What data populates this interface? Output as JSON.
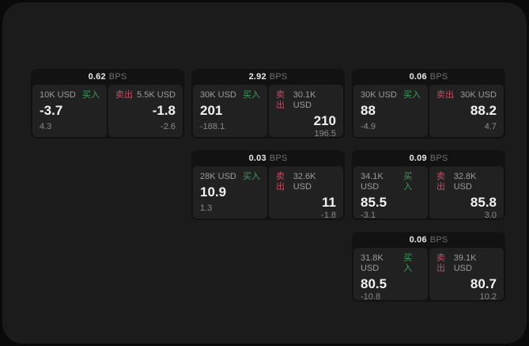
{
  "page": {
    "bg_outer": "#0a0a0a",
    "bg_inner": "#1b1b1b"
  },
  "labels": {
    "buy": "买入",
    "sell": "卖出",
    "bps": "BPS"
  },
  "colors": {
    "buy_green": "#3da05c",
    "sell_red": "#c24d63",
    "card_bg": "#121212",
    "panel_bg": "#212121"
  },
  "cards": [
    {
      "bps_value": "0.62",
      "buy": {
        "amount": "10K USD",
        "value": "-3.7",
        "change": "4.3"
      },
      "sell": {
        "amount": "5.5K USD",
        "value": "-1.8",
        "change": "-2.6"
      }
    },
    {
      "bps_value": "2.92",
      "buy": {
        "amount": "30K USD",
        "value": "201",
        "change": "-188.1"
      },
      "sell": {
        "amount": "30.1K USD",
        "value": "210",
        "change": "196.5"
      }
    },
    {
      "bps_value": "0.06",
      "buy": {
        "amount": "30K USD",
        "value": "88",
        "change": "-4.9"
      },
      "sell": {
        "amount": "30K USD",
        "value": "88.2",
        "change": "4.7"
      }
    },
    {
      "bps_value": "0.03",
      "buy": {
        "amount": "28K USD",
        "value": "10.9",
        "change": "1.3"
      },
      "sell": {
        "amount": "32.6K USD",
        "value": "11",
        "change": "-1.8"
      }
    },
    {
      "bps_value": "0.09",
      "buy": {
        "amount": "34.1K USD",
        "value": "85.5",
        "change": "-3.1"
      },
      "sell": {
        "amount": "32.8K USD",
        "value": "85.8",
        "change": "3.0"
      }
    },
    {
      "bps_value": "0.06",
      "buy": {
        "amount": "31.8K USD",
        "value": "80.5",
        "change": "-10.8"
      },
      "sell": {
        "amount": "39.1K USD",
        "value": "80.7",
        "change": "10.2"
      }
    }
  ]
}
